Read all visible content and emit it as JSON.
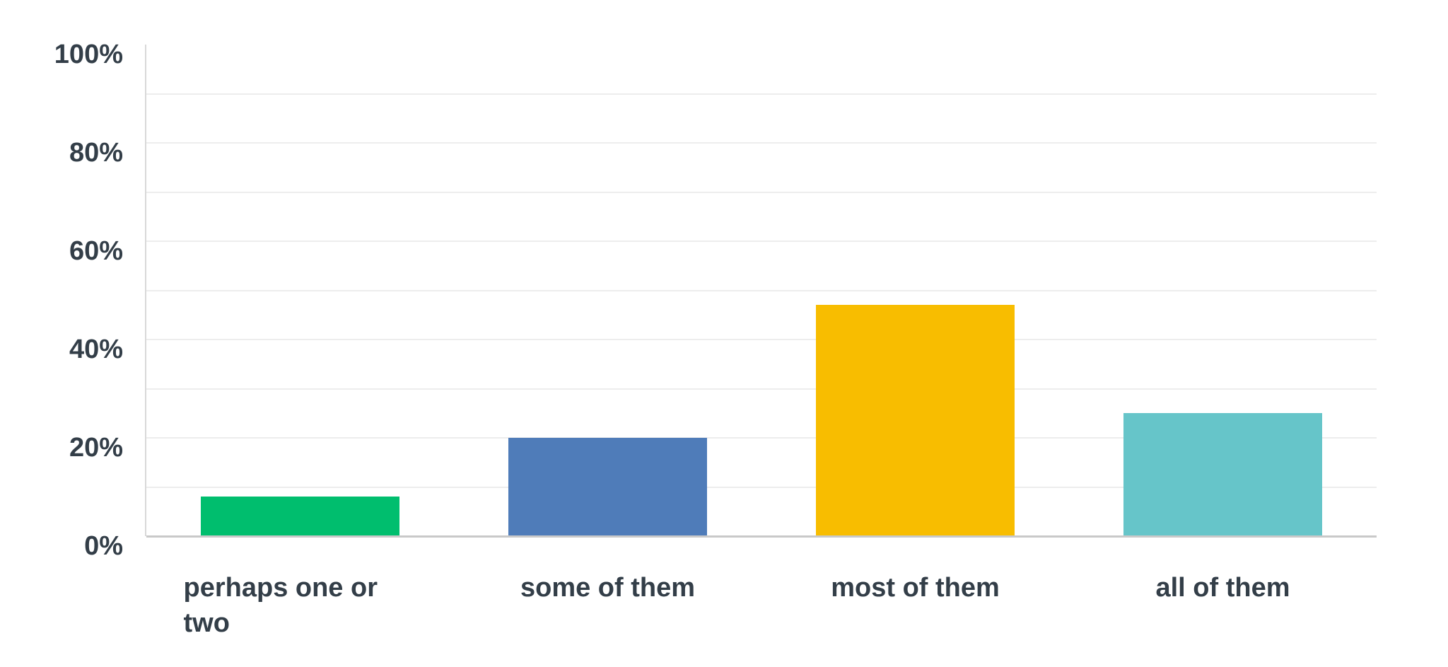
{
  "chart_data": {
    "type": "bar",
    "title": "",
    "xlabel": "",
    "ylabel": "",
    "categories": [
      "perhaps one or two",
      "some of them",
      "most of them",
      "all of them"
    ],
    "values": [
      8,
      20,
      47,
      25
    ],
    "value_unit": "%",
    "bar_colors": [
      "#00be6e",
      "#4f7cb9",
      "#f8bd00",
      "#66c5c9"
    ],
    "ylim": [
      0,
      100
    ],
    "grid": true,
    "gridline_interval_pct": 10,
    "legend_position": "none",
    "y_ticks": [
      {
        "label": "100%",
        "value": 100
      },
      {
        "label": "80%",
        "value": 80
      },
      {
        "label": "60%",
        "value": 60
      },
      {
        "label": "40%",
        "value": 40
      },
      {
        "label": "20%",
        "value": 20
      },
      {
        "label": "0%",
        "value": 0
      }
    ]
  },
  "colors": {
    "background": "#ffffff",
    "text": "#333e48",
    "gridline": "#ededed",
    "y_axis_line": "#d9d9d9",
    "x_axis_line": "#c9c9c9"
  }
}
